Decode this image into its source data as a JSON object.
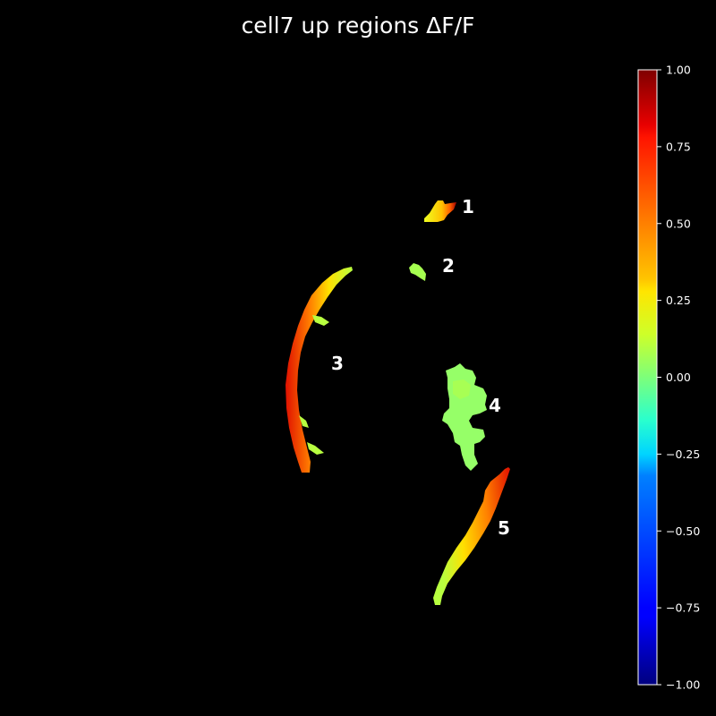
{
  "title": "cell7 up regions ΔF/F",
  "colormap": "jet",
  "background_color": "#000000",
  "region_labels": [
    "1",
    "2",
    "3",
    "4",
    "5"
  ],
  "colorbar": {
    "range": [
      -1.0,
      1.0
    ],
    "tick_values": [
      1.0,
      0.75,
      0.5,
      0.25,
      0.0,
      -0.25,
      -0.5,
      -0.75,
      -1.0
    ],
    "tick_labels": [
      "1.00",
      "0.75",
      "0.50",
      "0.25",
      "0.00",
      "−0.25",
      "−0.50",
      "−0.75",
      "−1.00"
    ]
  }
}
